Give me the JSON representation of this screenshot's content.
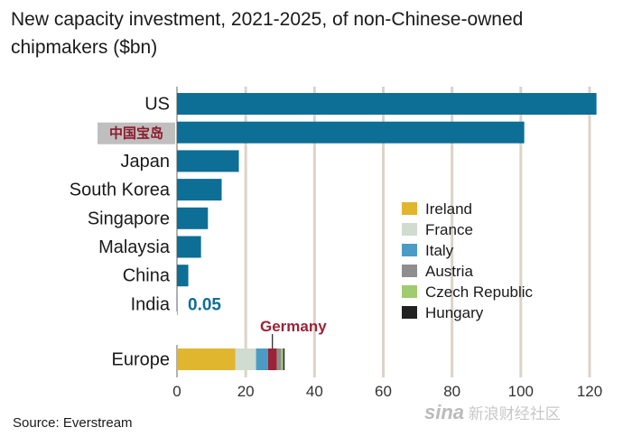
{
  "title": "New capacity investment, 2021-2025, of non-Chinese-owned chipmakers ($bn)",
  "source": "Source: Everstream",
  "watermark": {
    "logo": "sina",
    "text": "新浪财经社区"
  },
  "colors": {
    "bar": "#0d6e96",
    "grid": "#ddd3c8",
    "highlight_bg": "#bfbfbf",
    "highlight_text": "#8c1c2c",
    "india_label": "#0d6e96",
    "germany_label": "#9b2335"
  },
  "chart_data": {
    "type": "bar",
    "orientation": "horizontal",
    "xlim": [
      0,
      120
    ],
    "xticks": [
      0,
      20,
      40,
      60,
      80,
      100,
      120
    ],
    "grid": true,
    "bars": [
      {
        "label": "US",
        "value": 122,
        "highlight": false
      },
      {
        "label": "中国宝岛",
        "value": 101,
        "highlight": true
      },
      {
        "label": "Japan",
        "value": 18
      },
      {
        "label": "South Korea",
        "value": 13
      },
      {
        "label": "Singapore",
        "value": 9
      },
      {
        "label": "Malaysia",
        "value": 7
      },
      {
        "label": "China",
        "value": 3.3
      },
      {
        "label": "India",
        "value": 0.05,
        "value_label": "0.05"
      }
    ],
    "stacked_bar": {
      "label": "Europe",
      "callout": "Germany",
      "segments": [
        {
          "name": "Ireland",
          "value": 17,
          "color": "#e0b62f"
        },
        {
          "name": "France",
          "value": 6,
          "color": "#cfdccf"
        },
        {
          "name": "Italy",
          "value": 3.5,
          "color": "#4a9cc4"
        },
        {
          "name": "Germany",
          "value": 2.5,
          "color": "#9b2335"
        },
        {
          "name": "Austria",
          "value": 1.3,
          "color": "#8e8e8e"
        },
        {
          "name": "Czech Republic",
          "value": 0.6,
          "color": "#9fcc6e"
        },
        {
          "name": "Hungary",
          "value": 0.4,
          "color": "#222222"
        }
      ]
    },
    "legend": {
      "placement": "right",
      "items": [
        {
          "name": "Ireland",
          "color": "#e0b62f"
        },
        {
          "name": "France",
          "color": "#cfdccf"
        },
        {
          "name": "Italy",
          "color": "#4a9cc4"
        },
        {
          "name": "Austria",
          "color": "#8e8e8e"
        },
        {
          "name": "Czech Republic",
          "color": "#9fcc6e"
        },
        {
          "name": "Hungary",
          "color": "#222222"
        }
      ]
    }
  }
}
